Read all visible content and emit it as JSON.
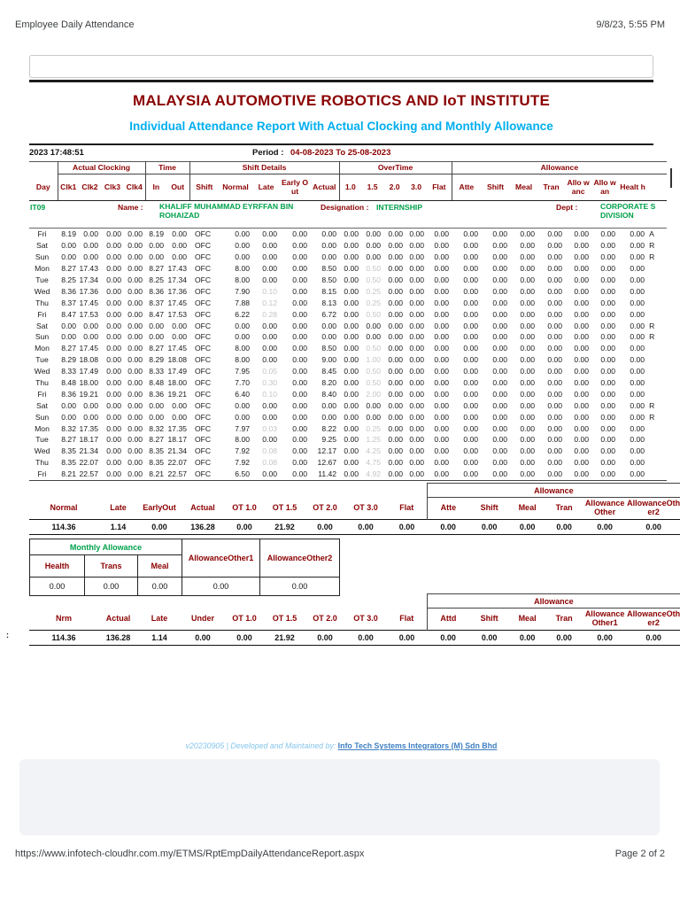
{
  "colors": {
    "maroon": "#8B0000",
    "green": "#00A14B",
    "cyan": "#00AEEF",
    "grey_value": "#c4c4c4"
  },
  "browser": {
    "doc_title": "Employee Daily Attendance",
    "datetime": "9/8/23, 5:55 PM",
    "url": "https://www.infotech-cloudhr.com.my/ETMS/RptEmpDailyAttendanceReport.aspx",
    "page_number": "Page 2 of 2"
  },
  "report": {
    "institute": "MALAYSIA AUTOMOTIVE ROBOTICS AND IoT INSTITUTE",
    "subtitle": "Individual Attendance Report With Actual Clocking and Monthly Allowance",
    "generated": "2023 17:48:51",
    "period_label": "Period :",
    "period": "04-08-2023 To 25-08-2023"
  },
  "employee": {
    "id": "IT09",
    "name_label": "Name :",
    "name": "KHALIFF MUHAMMAD EYRFFAN BIN ROHAIZAD",
    "designation_label": "Designation :",
    "designation": "INTERNSHIP",
    "dept_label": "Dept :",
    "dept_line1": "CORPORATE S",
    "dept_line2": "DIVISION"
  },
  "attendance": {
    "groups": [
      {
        "label": "",
        "span": 1
      },
      {
        "label": "Actual Clocking",
        "span": 4
      },
      {
        "label": "Time",
        "span": 2
      },
      {
        "label": "Shift Details",
        "span": 5
      },
      {
        "label": "OverTime",
        "span": 5
      },
      {
        "label": "Allowance",
        "span": 8
      }
    ],
    "columns": [
      "Day",
      "Clk1",
      "Clk2",
      "Clk3",
      "Clk4",
      "In",
      "Out",
      "Shift",
      "Normal",
      "Late",
      "Early Out",
      "Actual",
      "1.0",
      "1.5",
      "2.0",
      "3.0",
      "Flat",
      "Atte",
      "Shift",
      "Meal",
      "Tran",
      "Allo wanc",
      "Allo wan",
      "Healt h",
      ""
    ],
    "rows": [
      [
        "Fri",
        "8.19",
        "0.00",
        "0.00",
        "0.00",
        "8.19",
        "0.00",
        "OFC",
        "0.00",
        "0.00",
        "0.00",
        "0.00",
        "0.00",
        "0.00",
        "0.00",
        "0.00",
        "0.00",
        "0.00",
        "0.00",
        "0.00",
        "0.00",
        "0.00",
        "0.00",
        "0.00",
        "A"
      ],
      [
        "Sat",
        "0.00",
        "0.00",
        "0.00",
        "0.00",
        "0.00",
        "0.00",
        "OFC",
        "0.00",
        "0.00",
        "0.00",
        "0.00",
        "0.00",
        "0.00",
        "0.00",
        "0.00",
        "0.00",
        "0.00",
        "0.00",
        "0.00",
        "0.00",
        "0.00",
        "0.00",
        "0.00",
        "R"
      ],
      [
        "Sun",
        "0.00",
        "0.00",
        "0.00",
        "0.00",
        "0.00",
        "0.00",
        "OFC",
        "0.00",
        "0.00",
        "0.00",
        "0.00",
        "0.00",
        "0.00",
        "0.00",
        "0.00",
        "0.00",
        "0.00",
        "0.00",
        "0.00",
        "0.00",
        "0.00",
        "0.00",
        "0.00",
        "R"
      ],
      [
        "Mon",
        "8.27",
        "17.43",
        "0.00",
        "0.00",
        "8.27",
        "17.43",
        "OFC",
        "8.00",
        "0.00",
        "0.00",
        "8.50",
        "0.00",
        "0.50",
        "0.00",
        "0.00",
        "0.00",
        "0.00",
        "0.00",
        "0.00",
        "0.00",
        "0.00",
        "0.00",
        "0.00",
        ""
      ],
      [
        "Tue",
        "8.25",
        "17.34",
        "0.00",
        "0.00",
        "8.25",
        "17.34",
        "OFC",
        "8.00",
        "0.00",
        "0.00",
        "8.50",
        "0.00",
        "0.50",
        "0.00",
        "0.00",
        "0.00",
        "0.00",
        "0.00",
        "0.00",
        "0.00",
        "0.00",
        "0.00",
        "0.00",
        ""
      ],
      [
        "Wed",
        "8.36",
        "17.36",
        "0.00",
        "0.00",
        "8.36",
        "17.36",
        "OFC",
        "7.90",
        "0.10",
        "0.00",
        "8.15",
        "0.00",
        "0.25",
        "0.00",
        "0.00",
        "0.00",
        "0.00",
        "0.00",
        "0.00",
        "0.00",
        "0.00",
        "0.00",
        "0.00",
        ""
      ],
      [
        "Thu",
        "8.37",
        "17.45",
        "0.00",
        "0.00",
        "8.37",
        "17.45",
        "OFC",
        "7.88",
        "0.12",
        "0.00",
        "8.13",
        "0.00",
        "0.25",
        "0.00",
        "0.00",
        "0.00",
        "0.00",
        "0.00",
        "0.00",
        "0.00",
        "0.00",
        "0.00",
        "0.00",
        ""
      ],
      [
        "Fri",
        "8.47",
        "17.53",
        "0.00",
        "0.00",
        "8.47",
        "17.53",
        "OFC",
        "6.22",
        "0.28",
        "0.00",
        "6.72",
        "0.00",
        "0.50",
        "0.00",
        "0.00",
        "0.00",
        "0.00",
        "0.00",
        "0.00",
        "0.00",
        "0.00",
        "0.00",
        "0.00",
        ""
      ],
      [
        "Sat",
        "0.00",
        "0.00",
        "0.00",
        "0.00",
        "0.00",
        "0.00",
        "OFC",
        "0.00",
        "0.00",
        "0.00",
        "0.00",
        "0.00",
        "0.00",
        "0.00",
        "0.00",
        "0.00",
        "0.00",
        "0.00",
        "0.00",
        "0.00",
        "0.00",
        "0.00",
        "0.00",
        "R"
      ],
      [
        "Sun",
        "0.00",
        "0.00",
        "0.00",
        "0.00",
        "0.00",
        "0.00",
        "OFC",
        "0.00",
        "0.00",
        "0.00",
        "0.00",
        "0.00",
        "0.00",
        "0.00",
        "0.00",
        "0.00",
        "0.00",
        "0.00",
        "0.00",
        "0.00",
        "0.00",
        "0.00",
        "0.00",
        "R"
      ],
      [
        "Mon",
        "8.27",
        "17.45",
        "0.00",
        "0.00",
        "8.27",
        "17.45",
        "OFC",
        "8.00",
        "0.00",
        "0.00",
        "8.50",
        "0.00",
        "0.50",
        "0.00",
        "0.00",
        "0.00",
        "0.00",
        "0.00",
        "0.00",
        "0.00",
        "0.00",
        "0.00",
        "0.00",
        ""
      ],
      [
        "Tue",
        "8.29",
        "18.08",
        "0.00",
        "0.00",
        "8.29",
        "18.08",
        "OFC",
        "8.00",
        "0.00",
        "0.00",
        "9.00",
        "0.00",
        "1.00",
        "0.00",
        "0.00",
        "0.00",
        "0.00",
        "0.00",
        "0.00",
        "0.00",
        "0.00",
        "0.00",
        "0.00",
        ""
      ],
      [
        "Wed",
        "8.33",
        "17.49",
        "0.00",
        "0.00",
        "8.33",
        "17.49",
        "OFC",
        "7.95",
        "0.05",
        "0.00",
        "8.45",
        "0.00",
        "0.50",
        "0.00",
        "0.00",
        "0.00",
        "0.00",
        "0.00",
        "0.00",
        "0.00",
        "0.00",
        "0.00",
        "0.00",
        ""
      ],
      [
        "Thu",
        "8.48",
        "18.00",
        "0.00",
        "0.00",
        "8.48",
        "18.00",
        "OFC",
        "7.70",
        "0.30",
        "0.00",
        "8.20",
        "0.00",
        "0.50",
        "0.00",
        "0.00",
        "0.00",
        "0.00",
        "0.00",
        "0.00",
        "0.00",
        "0.00",
        "0.00",
        "0.00",
        ""
      ],
      [
        "Fri",
        "8.36",
        "19.21",
        "0.00",
        "0.00",
        "8.36",
        "19.21",
        "OFC",
        "6.40",
        "0.10",
        "0.00",
        "8.40",
        "0.00",
        "2.00",
        "0.00",
        "0.00",
        "0.00",
        "0.00",
        "0.00",
        "0.00",
        "0.00",
        "0.00",
        "0.00",
        "0.00",
        ""
      ],
      [
        "Sat",
        "0.00",
        "0.00",
        "0.00",
        "0.00",
        "0.00",
        "0.00",
        "OFC",
        "0.00",
        "0.00",
        "0.00",
        "0.00",
        "0.00",
        "0.00",
        "0.00",
        "0.00",
        "0.00",
        "0.00",
        "0.00",
        "0.00",
        "0.00",
        "0.00",
        "0.00",
        "0.00",
        "R"
      ],
      [
        "Sun",
        "0.00",
        "0.00",
        "0.00",
        "0.00",
        "0.00",
        "0.00",
        "OFC",
        "0.00",
        "0.00",
        "0.00",
        "0.00",
        "0.00",
        "0.00",
        "0.00",
        "0.00",
        "0.00",
        "0.00",
        "0.00",
        "0.00",
        "0.00",
        "0.00",
        "0.00",
        "0.00",
        "R"
      ],
      [
        "Mon",
        "8.32",
        "17.35",
        "0.00",
        "0.00",
        "8.32",
        "17.35",
        "OFC",
        "7.97",
        "0.03",
        "0.00",
        "8.22",
        "0.00",
        "0.25",
        "0.00",
        "0.00",
        "0.00",
        "0.00",
        "0.00",
        "0.00",
        "0.00",
        "0.00",
        "0.00",
        "0.00",
        ""
      ],
      [
        "Tue",
        "8.27",
        "18.17",
        "0.00",
        "0.00",
        "8.27",
        "18.17",
        "OFC",
        "8.00",
        "0.00",
        "0.00",
        "9.25",
        "0.00",
        "1.25",
        "0.00",
        "0.00",
        "0.00",
        "0.00",
        "0.00",
        "0.00",
        "0.00",
        "0.00",
        "0.00",
        "0.00",
        ""
      ],
      [
        "Wed",
        "8.35",
        "21.34",
        "0.00",
        "0.00",
        "8.35",
        "21.34",
        "OFC",
        "7.92",
        "0.08",
        "0.00",
        "12.17",
        "0.00",
        "4.25",
        "0.00",
        "0.00",
        "0.00",
        "0.00",
        "0.00",
        "0.00",
        "0.00",
        "0.00",
        "0.00",
        "0.00",
        ""
      ],
      [
        "Thu",
        "8.35",
        "22.07",
        "0.00",
        "0.00",
        "8.35",
        "22.07",
        "OFC",
        "7.92",
        "0.08",
        "0.00",
        "12.67",
        "0.00",
        "4.75",
        "0.00",
        "0.00",
        "0.00",
        "0.00",
        "0.00",
        "0.00",
        "0.00",
        "0.00",
        "0.00",
        "0.00",
        ""
      ],
      [
        "Fri",
        "8.21",
        "22.57",
        "0.00",
        "0.00",
        "8.21",
        "22.57",
        "OFC",
        "6.50",
        "0.00",
        "0.00",
        "11.42",
        "0.00",
        "4.92",
        "0.00",
        "0.00",
        "0.00",
        "0.00",
        "0.00",
        "0.00",
        "0.00",
        "0.00",
        "0.00",
        "0.00",
        ""
      ]
    ]
  },
  "summary1": {
    "allowance_label": "Allowance",
    "labels": [
      "Normal",
      "Late",
      "EarlyOut",
      "Actual",
      "OT 1.0",
      "OT 1.5",
      "OT 2.0",
      "OT 3.0",
      "Flat",
      "Atte",
      "Shift",
      "Meal",
      "Tran",
      "AllowanceOther",
      "AllowanceOther2"
    ],
    "values": [
      "114.36",
      "1.14",
      "0.00",
      "136.28",
      "0.00",
      "21.92",
      "0.00",
      "0.00",
      "0.00",
      "0.00",
      "0.00",
      "0.00",
      "0.00",
      "0.00",
      "0.00"
    ]
  },
  "monthly_allowance": {
    "title": "Monthly Allowance",
    "columns": [
      "Health",
      "Trans",
      "Meal",
      "AllowanceOther1",
      "AllowanceOther2"
    ],
    "values": [
      "0.00",
      "0.00",
      "0.00",
      "0.00",
      "0.00"
    ]
  },
  "summary2": {
    "allowance_label": "Allowance",
    "labels": [
      "Nrm",
      "Actual",
      "Late",
      "Under",
      "OT 1.0",
      "OT 1.5",
      "OT 2.0",
      "OT 3.0",
      "Flat",
      "Attd",
      "Shift",
      "Meal",
      "Tran",
      "AllowanceOther1",
      "AllowanceOther2"
    ],
    "values": [
      "114.36",
      "136.28",
      "1.14",
      "0.00",
      "0.00",
      "21.92",
      "0.00",
      "0.00",
      "0.00",
      "0.00",
      "0.00",
      "0.00",
      "0.00",
      "0.00",
      "0.00"
    ],
    "left_partial": ":"
  },
  "footer": {
    "version_text": "v20230905 | Developed and Maintained by:",
    "link_text": "Info Tech Systems Integrators (M) Sdn Bhd"
  }
}
